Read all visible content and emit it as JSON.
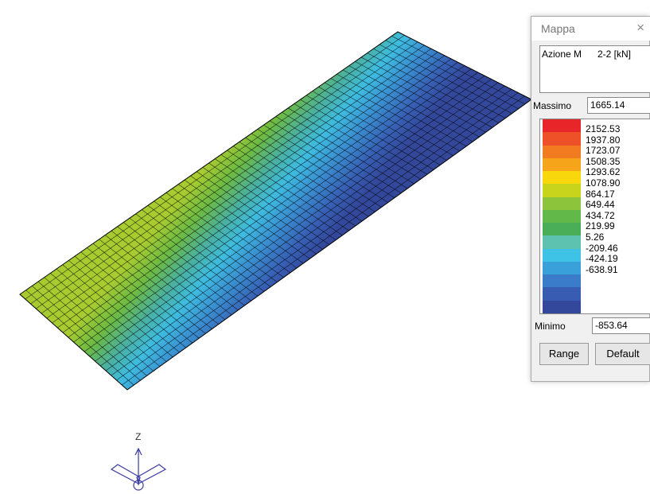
{
  "window": {
    "title": "Mappa",
    "close": "×",
    "quantity": "Azione M",
    "component": "2-2 [kN]",
    "max_label": "Massimo",
    "max_value": "1665.14",
    "legend": {
      "colors": [
        "#e8262a",
        "#ee5128",
        "#f27b22",
        "#f6a51a",
        "#f8d80c",
        "#c8d41c",
        "#8cc43c",
        "#62b848",
        "#4aae58",
        "#5ec2b0",
        "#3ec2e6",
        "#3aa0da",
        "#3a7cca",
        "#375cb2",
        "#33489a"
      ],
      "values": [
        "2152.53",
        "1937.80",
        "1723.07",
        "1508.35",
        "1293.62",
        "1078.90",
        "864.17",
        "649.44",
        "434.72",
        "219.99",
        "5.26",
        "-209.46",
        "-424.19",
        "-638.91"
      ]
    },
    "min_label": "Minimo",
    "min_value": "-853.64",
    "buttons": [
      "Range",
      "Default"
    ]
  },
  "axes": {
    "z_label": "Z"
  }
}
